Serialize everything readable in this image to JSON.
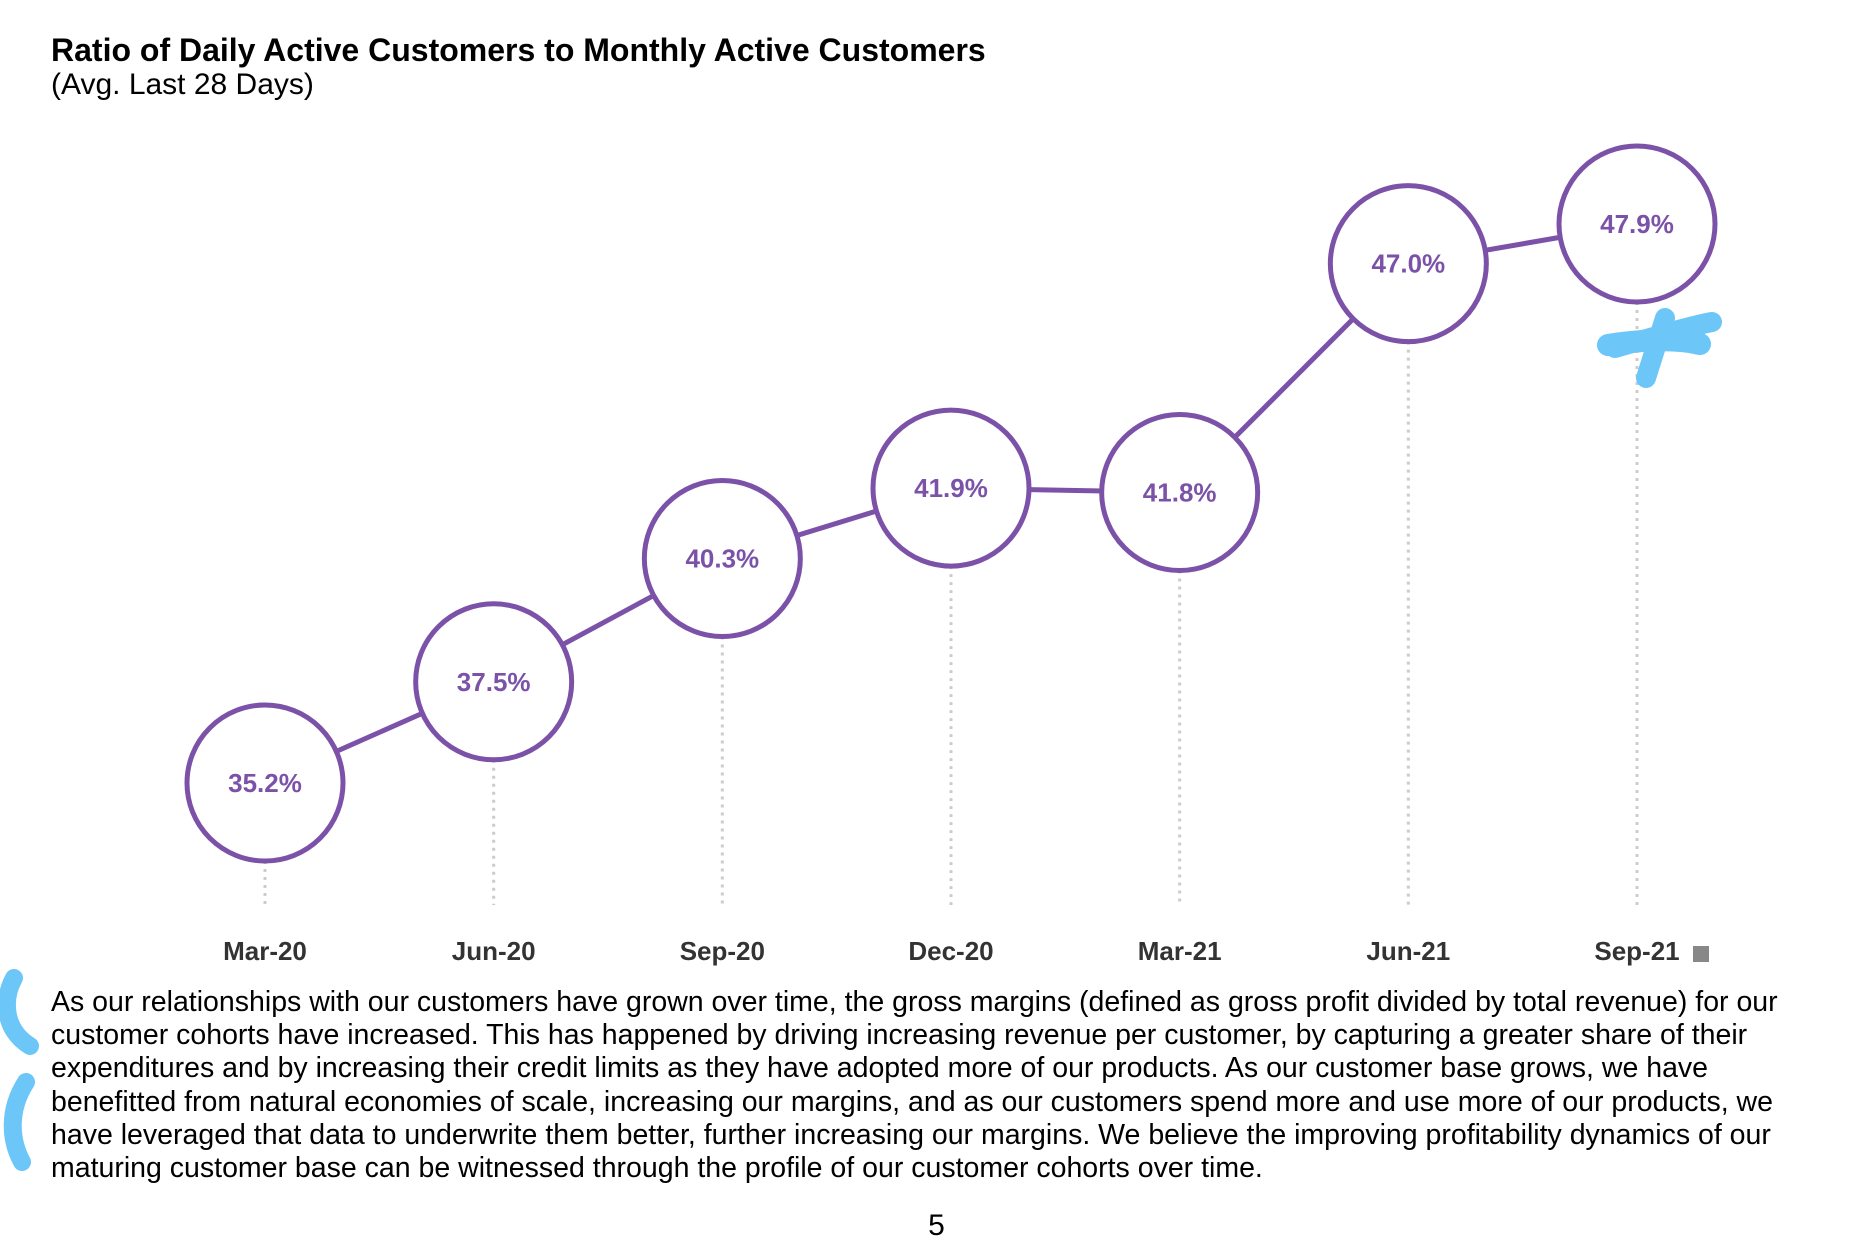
{
  "chart_data": {
    "type": "line",
    "title": "Ratio of Daily Active Customers to Monthly Active Customers",
    "subtitle": "(Avg. Last 28 Days)",
    "categories": [
      "Mar-20",
      "Jun-20",
      "Sep-20",
      "Dec-20",
      "Mar-21",
      "Jun-21",
      "Sep-21"
    ],
    "values": [
      35.2,
      37.5,
      40.3,
      41.9,
      41.8,
      47.0,
      47.9
    ],
    "data_labels": [
      "35.2%",
      "37.5%",
      "40.3%",
      "41.9%",
      "41.8%",
      "47.0%",
      "47.9%"
    ],
    "ylim": [
      30,
      50
    ],
    "grid": false,
    "xlabel": "",
    "ylabel": "",
    "colors": {
      "line": "#7b52a8",
      "label": "#7b52a8",
      "marker_fill": "#ffffff",
      "dropline": "#cccccc",
      "tick_label": "#333333"
    }
  },
  "paragraph": {
    "lines": [
      "As our relationships with our customers have grown over time, the gross margins (defined as gross profit divided by total revenue) for our",
      "customer cohorts have increased. This has happened by driving increasing revenue per customer, by capturing a greater share of their",
      "expenditures and by increasing their credit limits as they have adopted more of our products. As our customer base grows, we have",
      "benefitted from natural economies of scale, increasing our margins, and as our customers spend more and use more of our products, we",
      "have leveraged that data to underwrite them better, further increasing our margins. We believe the improving profitability dynamics of our",
      "maturing customer base can be witnessed through the profile of our customer cohorts over time."
    ]
  },
  "page_number": "5",
  "annotation_color": "#6cc6f7"
}
